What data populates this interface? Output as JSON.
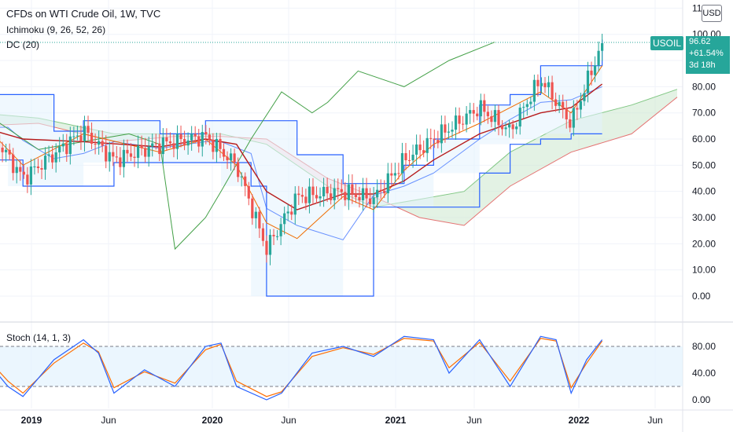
{
  "legend": {
    "title": "CFDs on WTI Crude Oil, 1W, TVC",
    "ichimoku": "Ichimoku (9, 26, 52, 26)",
    "donchian": "DC (20)",
    "stoch": "Stoch (14, 1, 3)"
  },
  "currency": "USD",
  "last_price": {
    "symbol": "USOIL",
    "price": "96.62",
    "change": "+61.54%",
    "countdown": "3d 18h"
  },
  "colors": {
    "up": "#26a69a",
    "down": "#ef5350",
    "donchian": "#2962ff",
    "donchian_fill": "#e3f2fd",
    "kijun": "#b71c1c",
    "tenkan": "#ef6c00",
    "chikou": "#43a047",
    "cloud_bull": "#c8e6c9",
    "cloud_bear": "#ffcdd2",
    "stoch_k": "#2962ff",
    "stoch_d": "#ff6d00"
  },
  "chart_data": [
    {
      "type": "candlestick",
      "title": "CFDs on WTI Crude Oil, 1W, TVC",
      "x_ticks": [
        "2019",
        "Jun",
        "2020",
        "Jun",
        "2021",
        "Jun",
        "2022",
        "Jun"
      ],
      "y_ticks": [
        "0.00",
        "10.00",
        "20.00",
        "30.00",
        "40.00",
        "50.00",
        "60.00",
        "70.00",
        "80.00",
        "90.00",
        "100.00",
        "110.00"
      ],
      "ylim": [
        -4,
        112
      ],
      "grid": true,
      "last_value": 96.62,
      "anchors": {
        "date": [
          "2018-09",
          "2018-12",
          "2019-04",
          "2019-06",
          "2019-09",
          "2019-12",
          "2020-02",
          "2020-04",
          "2020-06",
          "2020-09",
          "2020-11",
          "2021-01",
          "2021-03",
          "2021-06",
          "2021-08",
          "2021-10",
          "2021-12",
          "2022-02"
        ],
        "close": [
          70,
          45,
          63,
          52,
          58,
          61,
          50,
          18,
          38,
          40,
          37,
          52,
          60,
          72,
          63,
          83,
          66,
          96.6
        ]
      },
      "donchian_20": {
        "date": [
          "2018-09",
          "2018-11",
          "2018-12",
          "2019-02",
          "2019-04",
          "2019-06",
          "2019-09",
          "2019-12",
          "2020-01",
          "2020-03",
          "2020-04",
          "2020-06",
          "2020-09",
          "2020-11",
          "2021-01",
          "2021-03",
          "2021-06",
          "2021-08",
          "2021-10",
          "2021-12",
          "2022-02"
        ],
        "upper": [
          77,
          77,
          77,
          63,
          67,
          67,
          62,
          67,
          67,
          67,
          67,
          54,
          43,
          43,
          50,
          60,
          73,
          77,
          88,
          88,
          98
        ],
        "lower": [
          52,
          52,
          42,
          42,
          42,
          51,
          51,
          51,
          51,
          42,
          0,
          0,
          0,
          34,
          34,
          34,
          47,
          58,
          60,
          62,
          62
        ]
      },
      "kijun": {
        "date": [
          "2018-09",
          "2018-12",
          "2019-04",
          "2019-09",
          "2019-12",
          "2020-02",
          "2020-04",
          "2020-06",
          "2020-09",
          "2020-11",
          "2021-01",
          "2021-03",
          "2021-06",
          "2021-10",
          "2021-12",
          "2022-02"
        ],
        "values": [
          65,
          60,
          59,
          57,
          60,
          58,
          40,
          33,
          39,
          39,
          44,
          52,
          62,
          70,
          72,
          81
        ]
      },
      "tenkan": {
        "date": [
          "2018-09",
          "2018-12",
          "2019-04",
          "2019-09",
          "2019-12",
          "2020-02",
          "2020-04",
          "2020-06",
          "2020-09",
          "2020-11",
          "2021-01",
          "2021-03",
          "2021-06",
          "2021-10",
          "2021-12",
          "2022-02"
        ],
        "values": [
          68,
          50,
          62,
          55,
          60,
          50,
          28,
          22,
          38,
          33,
          48,
          58,
          66,
          78,
          70,
          88
        ]
      },
      "chikou": {
        "date": [
          "2018-07",
          "2018-10",
          "2019-01",
          "2019-03",
          "2019-05",
          "2019-07",
          "2019-09",
          "2019-10",
          "2019-12",
          "2020-01",
          "2020-03",
          "2020-05",
          "2020-07",
          "2020-08",
          "2020-10",
          "2021-01",
          "2021-04",
          "2021-07"
        ],
        "values": [
          62,
          68,
          56,
          58,
          60,
          62,
          58,
          18,
          30,
          40,
          60,
          78,
          70,
          74,
          86,
          80,
          90,
          97
        ]
      },
      "cloud": {
        "date": [
          "2018-09",
          "2019-01",
          "2019-06",
          "2019-10",
          "2020-01",
          "2020-04",
          "2020-08",
          "2020-11",
          "2021-02",
          "2021-05",
          "2021-08",
          "2021-12",
          "2022-04",
          "2022-07"
        ],
        "span_a": [
          70,
          68,
          62,
          62,
          62,
          58,
          42,
          34,
          37,
          40,
          55,
          67,
          73,
          79
        ],
        "span_b": [
          65,
          66,
          59,
          61,
          61,
          60,
          45,
          38,
          30,
          27,
          42,
          55,
          62,
          76
        ]
      }
    },
    {
      "type": "line",
      "title": "Stoch (14, 1, 3)",
      "y_ticks": [
        "0.00",
        "40.00",
        "80.00"
      ],
      "ylim": [
        -6,
        102
      ],
      "bands": [
        20,
        80
      ],
      "series": [
        {
          "name": "",
          "date": [
            "2018-09",
            "2018-11",
            "2018-12",
            "2019-02",
            "2019-04",
            "2019-05",
            "2019-06",
            "2019-08",
            "2019-10",
            "2019-12",
            "2020-01",
            "2020-02",
            "2020-04",
            "2020-05",
            "2020-07",
            "2020-09",
            "2020-11",
            "2021-01",
            "2021-03",
            "2021-04",
            "2021-06",
            "2021-08",
            "2021-10",
            "2021-11",
            "2021-12",
            "2022-01",
            "2022-02"
          ],
          "values": [
            75,
            20,
            5,
            60,
            90,
            70,
            10,
            45,
            20,
            80,
            85,
            20,
            0,
            10,
            70,
            80,
            65,
            95,
            90,
            40,
            90,
            20,
            95,
            90,
            10,
            60,
            90
          ]
        },
        {
          "name": "",
          "date": [
            "2018-09",
            "2018-11",
            "2018-12",
            "2019-02",
            "2019-04",
            "2019-05",
            "2019-06",
            "2019-08",
            "2019-10",
            "2019-12",
            "2020-01",
            "2020-02",
            "2020-04",
            "2020-05",
            "2020-07",
            "2020-09",
            "2020-11",
            "2021-01",
            "2021-03",
            "2021-04",
            "2021-06",
            "2021-08",
            "2021-10",
            "2021-11",
            "2021-12",
            "2022-01",
            "2022-02"
          ],
          "values": [
            78,
            28,
            10,
            55,
            85,
            72,
            18,
            42,
            25,
            75,
            83,
            28,
            5,
            12,
            65,
            78,
            68,
            92,
            88,
            48,
            86,
            28,
            92,
            88,
            18,
            55,
            88
          ]
        }
      ]
    }
  ]
}
